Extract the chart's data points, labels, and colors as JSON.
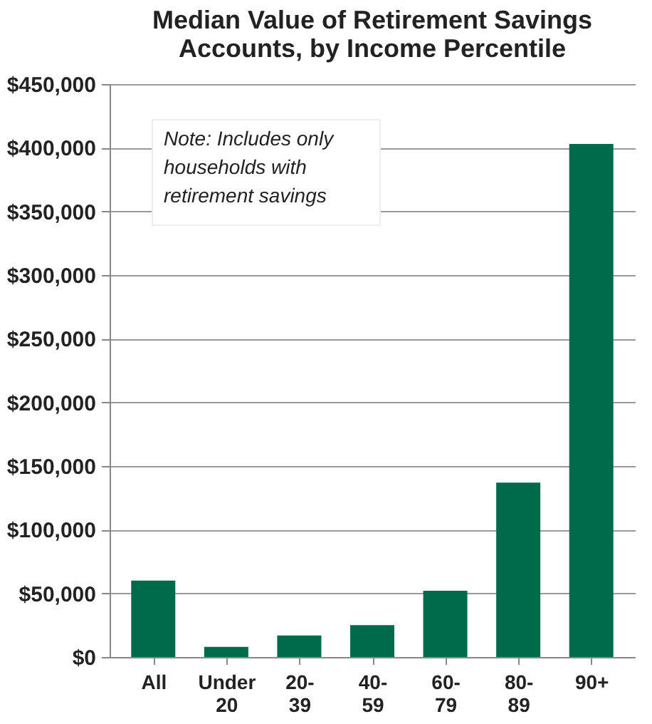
{
  "chart_data": {
    "type": "bar",
    "title": "Median Value of Retirement Savings Accounts, by Income Percentile",
    "categories": [
      "All",
      "Under 20",
      "20-39",
      "40-59",
      "60-79",
      "80-89",
      "90+"
    ],
    "values": [
      60000,
      8000,
      17000,
      25000,
      52000,
      137000,
      403000
    ],
    "color": "#006b4a",
    "ylim": [
      0,
      450000
    ],
    "yticks": [
      {
        "value": 0,
        "label": "$0"
      },
      {
        "value": 50000,
        "label": "$50,000"
      },
      {
        "value": 100000,
        "label": "$100,000"
      },
      {
        "value": 150000,
        "label": "$150,000"
      },
      {
        "value": 200000,
        "label": "$200,000"
      },
      {
        "value": 250000,
        "label": "$250,000"
      },
      {
        "value": 300000,
        "label": "$300,000"
      },
      {
        "value": 350000,
        "label": "$350,000"
      },
      {
        "value": 400000,
        "label": "$400,000"
      },
      {
        "value": 450000,
        "label": "$450,000"
      }
    ],
    "grid": "y",
    "annotations": [
      "Note: Includes only households with retirement savings"
    ]
  }
}
